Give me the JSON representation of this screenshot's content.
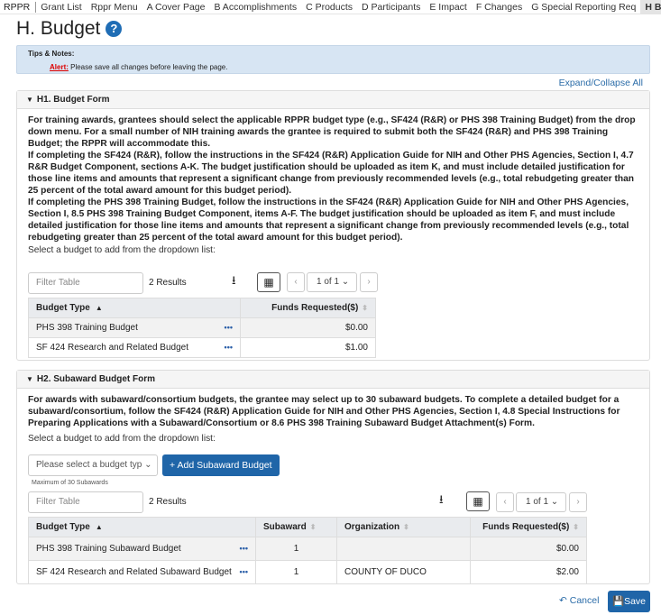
{
  "nav": {
    "brand": "RPPR",
    "items": [
      "Grant List",
      "Rppr Menu",
      "A Cover Page",
      "B Accomplishments",
      "C Products",
      "D Participants",
      "E Impact",
      "F Changes",
      "G Special Reporting Req",
      "H Budget"
    ],
    "active": "H Budget"
  },
  "page": {
    "title": "H. Budget",
    "help_icon": "?"
  },
  "tips": {
    "title": "Tips & Notes:",
    "alert_label": "Alert:",
    "alert_text": " Please save all changes before leaving the page."
  },
  "expand_all": "Expand/Collapse All",
  "h1": {
    "title": "H1. Budget Form",
    "paragraphs": [
      "For training awards, grantees should select the applicable RPPR budget type (e.g., SF424 (R&R) or PHS 398 Training Budget) from the drop down menu. For a small number of NIH training awards the grantee is required to submit both the SF424 (R&R) and PHS 398 Training Budget; the RPPR will accommodate this.",
      "If completing the SF424 (R&R), follow the instructions in the SF424 (R&R) Application Guide for NIH and Other PHS Agencies, Section I, 4.7 R&R Budget Component, sections A-K. The budget justification should be uploaded as item K, and must include detailed justification for those line items and amounts that represent a significant change from previously recommended levels (e.g., total rebudgeting greater than 25 percent of the total award amount for this budget period).",
      "If completing the PHS 398 Training Budget, follow the instructions in the SF424 (R&R) Application Guide for NIH and Other PHS Agencies, Section I, 8.5 PHS 398 Training Budget Component, items A-F. The budget justification should be uploaded as item F, and must include detailed justification for those line items and amounts that represent a significant change from previously recommended levels (e.g., total rebudgeting greater than 25 percent of the total award amount for this budget period)."
    ],
    "select_label": "Select a budget to add from the dropdown list:",
    "filter_placeholder": "Filter Table",
    "results": "2 Results",
    "page": "1 of 1",
    "columns": [
      "Budget Type",
      "Funds Requested($)"
    ],
    "rows": [
      {
        "type": "PHS 398 Training Budget",
        "funds": "$0.00"
      },
      {
        "type": "SF 424 Research and Related Budget",
        "funds": "$1.00"
      }
    ]
  },
  "h2": {
    "title": "H2. Subaward Budget Form",
    "paragraph": "For awards with subaward/consortium budgets, the grantee may select up to 30 subaward budgets. To complete a detailed budget for a subaward/consortium, follow the SF424 (R&R) Application Guide for NIH and Other PHS Agencies, Section I, 4.8 Special Instructions for Preparing Applications with a Subaward/Consortium or 8.6 PHS 398 Training Subaward Budget Attachment(s) Form.",
    "select_label": "Select a budget to add from the dropdown list:",
    "select_placeholder": "Please select a budget typ",
    "add_button": "+ Add Subaward Budget",
    "max_note": "Maximum of 30 Subawards",
    "filter_placeholder": "Filter Table",
    "results": "2 Results",
    "page": "1 of 1",
    "columns": [
      "Budget Type",
      "Subaward",
      "Organization",
      "Funds Requested($)"
    ],
    "rows": [
      {
        "type": "PHS 398 Training Subaward Budget",
        "subaward": "1",
        "org": "",
        "funds": "$0.00"
      },
      {
        "type": "SF 424 Research and Related Subaward Budget",
        "subaward": "1",
        "org": "COUNTY OF DUCO",
        "funds": "$2.00"
      }
    ]
  },
  "footer": {
    "cancel": "Cancel",
    "save": "Save"
  }
}
